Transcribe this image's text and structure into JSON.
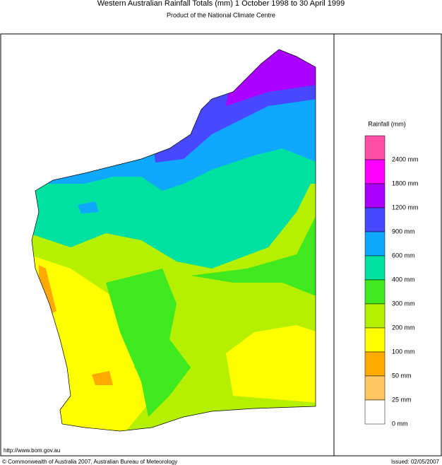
{
  "header": {
    "title": "Western Australian Rainfall Totals (mm) 1 October 1998 to 30 April 1999",
    "subtitle": "Product of the National Climate Centre"
  },
  "legend": {
    "title": "Rainfall (mm)",
    "labels": [
      "2400 mm",
      "1800 mm",
      "1200 mm",
      "900 mm",
      "600 mm",
      "400 mm",
      "300 mm",
      "200 mm",
      "100 mm",
      "50 mm",
      "25 mm",
      "0 mm"
    ],
    "colors": [
      "#ff50a8",
      "#ff00ff",
      "#aa00ff",
      "#4848ff",
      "#10a8ff",
      "#00e0a0",
      "#40e820",
      "#b4f000",
      "#ffff00",
      "#ffaa00",
      "#ffc864",
      "#ffffff"
    ]
  },
  "footer": {
    "url": "http://www.bom.gov.au",
    "copyright": "© Commonwealth of Australia 2007, Australian Bureau of Meteorology",
    "issued": "Issued: 02/05/2007"
  }
}
